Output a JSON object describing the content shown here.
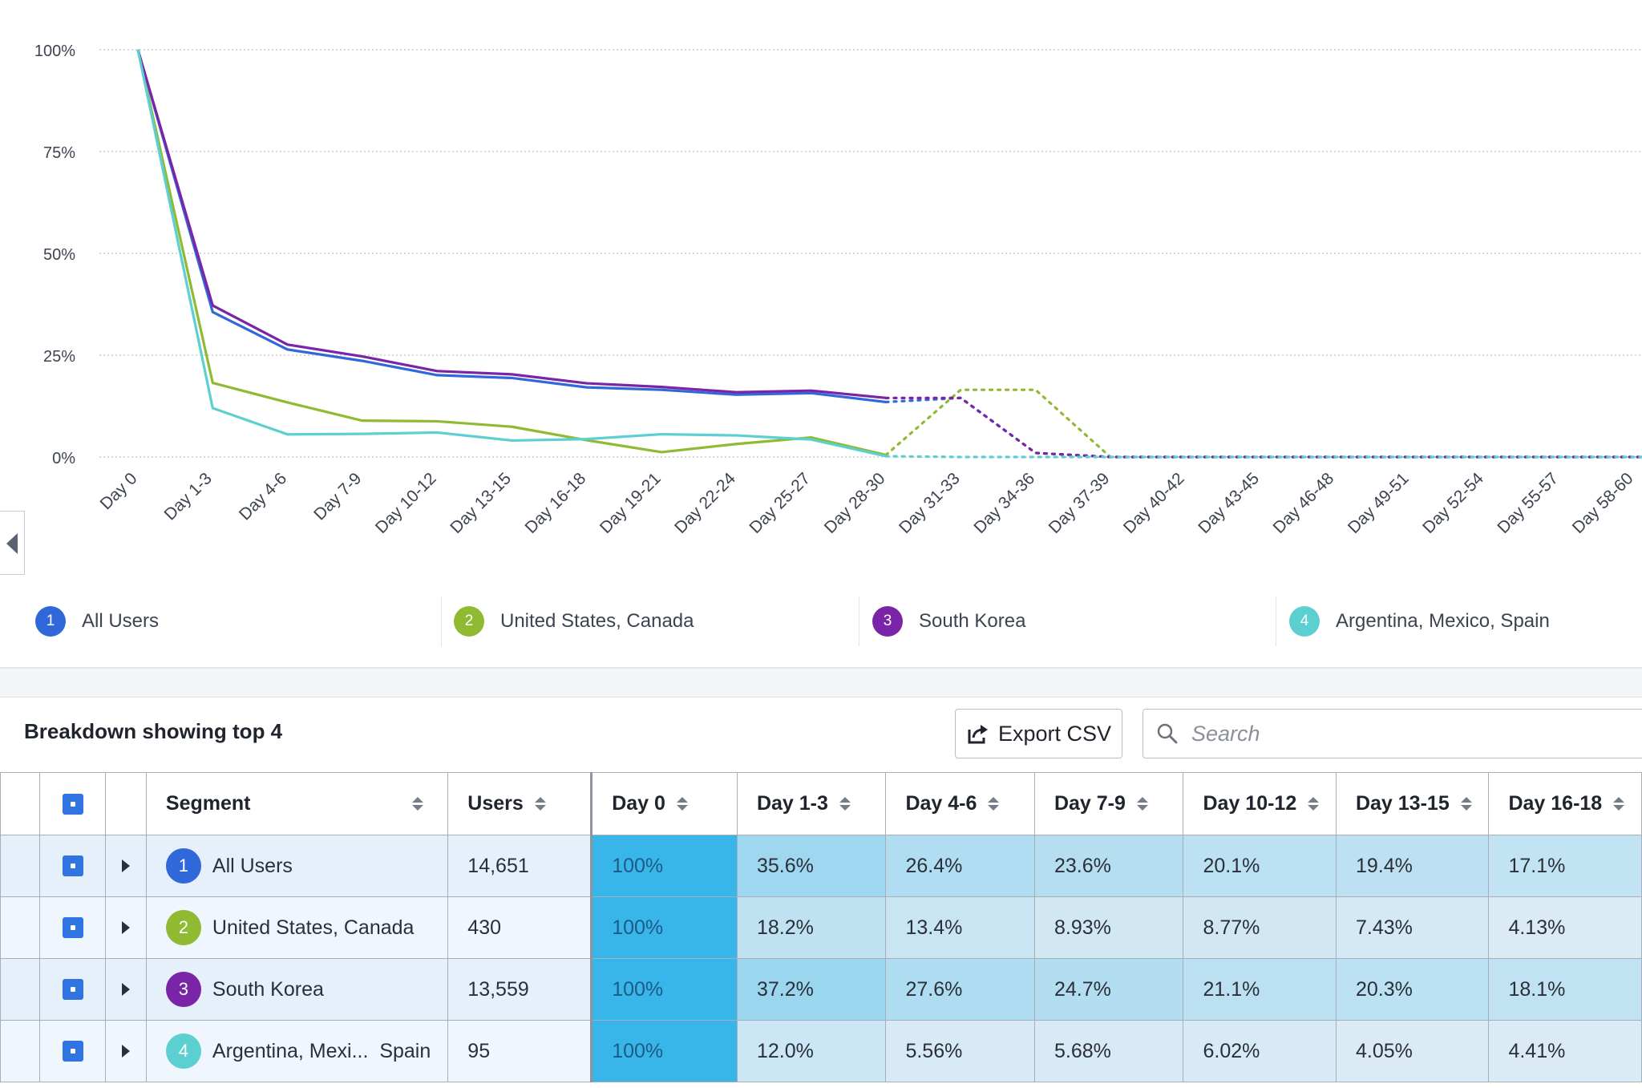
{
  "chart_data": {
    "type": "line",
    "ylabel": "",
    "xlabel": "",
    "ylim": [
      0,
      100
    ],
    "y_ticks": [
      "100%",
      "75%",
      "50%",
      "25%",
      "0%"
    ],
    "y_tick_values": [
      100,
      75,
      50,
      25,
      0
    ],
    "grid": true,
    "categories": [
      "Day 0",
      "Day 1-3",
      "Day 4-6",
      "Day 7-9",
      "Day 10-12",
      "Day 13-15",
      "Day 16-18",
      "Day 19-21",
      "Day 22-24",
      "Day 25-27",
      "Day 28-30",
      "Day 31-33",
      "Day 34-36",
      "Day 37-39",
      "Day 40-42",
      "Day 43-45",
      "Day 46-48",
      "Day 49-51",
      "Day 52-54",
      "Day 55-57",
      "Day 58-60"
    ],
    "solid_through_index": 10,
    "series": [
      {
        "name": "All Users",
        "color": "#3168d9",
        "values": [
          100,
          35.6,
          26.4,
          23.6,
          20.1,
          19.4,
          17.1,
          16.5,
          15.3,
          15.7,
          13.5,
          14.5,
          1,
          0,
          0,
          0,
          0,
          0,
          0,
          0,
          0
        ]
      },
      {
        "name": "United States, Canada",
        "color": "#8fba32",
        "values": [
          100,
          18.2,
          13.4,
          8.93,
          8.77,
          7.43,
          4.13,
          1.2,
          3.2,
          4.8,
          0.5,
          16.5,
          16.5,
          0,
          0,
          0,
          0,
          0,
          0,
          0,
          0
        ]
      },
      {
        "name": "South Korea",
        "color": "#7a24a8",
        "values": [
          100,
          37.2,
          27.6,
          24.7,
          21.1,
          20.3,
          18.1,
          17.2,
          15.9,
          16.3,
          14.5,
          14.5,
          1,
          0,
          0,
          0,
          0,
          0,
          0,
          0,
          0
        ]
      },
      {
        "name": "Argentina, Mexico, Spain",
        "color": "#5ccfd0",
        "values": [
          100,
          12.0,
          5.56,
          5.68,
          6.02,
          4.05,
          4.41,
          5.6,
          5.3,
          4.3,
          0.2,
          0,
          0,
          0,
          0,
          0,
          0,
          0,
          0,
          0,
          0
        ]
      }
    ]
  },
  "legend": {
    "items": [
      {
        "num": "1",
        "label": "All Users",
        "color": "#3168d9"
      },
      {
        "num": "2",
        "label": "United States, Canada",
        "color": "#8fba32"
      },
      {
        "num": "3",
        "label": "South Korea",
        "color": "#7a24a8"
      },
      {
        "num": "4",
        "label": "Argentina, Mexico, Spain",
        "color": "#5ccfd0"
      }
    ]
  },
  "breakdown": {
    "title": "Breakdown showing top 4",
    "export_label": "Export CSV",
    "search_placeholder": "Search"
  },
  "table": {
    "headers": {
      "segment": "Segment",
      "users": "Users",
      "days": [
        "Day 0",
        "Day 1-3",
        "Day 4-6",
        "Day 7-9",
        "Day 10-12",
        "Day 13-15",
        "Day 16-18"
      ]
    },
    "rows": [
      {
        "num": "1",
        "color": "#3168d9",
        "segment": "All Users",
        "users": "14,651",
        "values": [
          "100%",
          "35.6%",
          "26.4%",
          "23.6%",
          "20.1%",
          "19.4%",
          "17.1%"
        ]
      },
      {
        "num": "2",
        "color": "#8fba32",
        "segment": "United States, Canada",
        "users": "430",
        "values": [
          "100%",
          "18.2%",
          "13.4%",
          "8.93%",
          "8.77%",
          "7.43%",
          "4.13%"
        ]
      },
      {
        "num": "3",
        "color": "#7a24a8",
        "segment": "South Korea",
        "users": "13,559",
        "values": [
          "100%",
          "37.2%",
          "27.6%",
          "24.7%",
          "21.1%",
          "20.3%",
          "18.1%"
        ]
      },
      {
        "num": "4",
        "color": "#5ccfd0",
        "segment": "Argentina, Mexi...  Spain",
        "users": "95",
        "values": [
          "100%",
          "12.0%",
          "5.56%",
          "5.68%",
          "6.02%",
          "4.05%",
          "4.41%"
        ]
      }
    ]
  }
}
